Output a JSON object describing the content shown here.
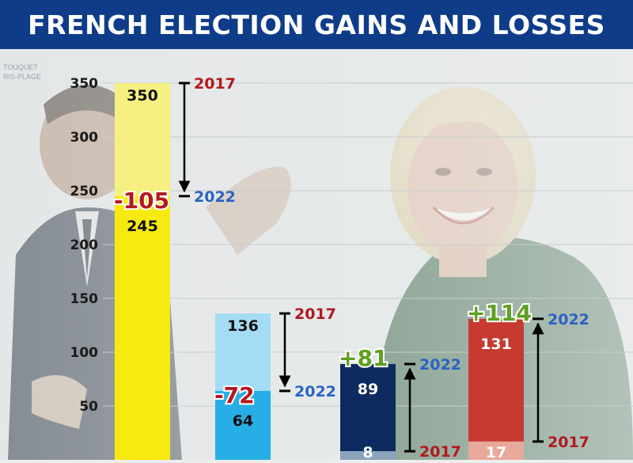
{
  "header": {
    "title": "FRENCH ELECTION GAINS AND LOSSES"
  },
  "watermark": {
    "line1": "TOUQUET",
    "line2": "RIS-PLAGE"
  },
  "colors": {
    "header_bg": "#0e3c89",
    "year_2017": "#b3191e",
    "year_2022": "#2a63c4",
    "gain": "#5ea020",
    "loss": "#b3191e"
  },
  "chart_data": {
    "type": "bar",
    "title": "FRENCH ELECTION GAINS AND LOSSES",
    "xlabel": "",
    "ylabel": "",
    "ylim": [
      0,
      350
    ],
    "yticks": [
      50,
      100,
      150,
      200,
      250,
      300,
      350
    ],
    "grid": true,
    "year_labels": {
      "from": "2017",
      "to": "2022"
    },
    "groups": [
      {
        "value_2017": 350,
        "value_2022": 245,
        "change": "-105",
        "bar_2017": "#f6f082",
        "bar_2022": "#f7ea10"
      },
      {
        "value_2017": 136,
        "value_2022": 64,
        "change": "-72",
        "bar_2017": "#a4dcf4",
        "bar_2022": "#27aee6"
      },
      {
        "value_2017": 8,
        "value_2022": 89,
        "change": "+81",
        "bar_2017": "#8aa3bd",
        "bar_2022": "#0d2b5e"
      },
      {
        "value_2017": 17,
        "value_2022": 131,
        "change": "+114",
        "bar_2017": "#e8a89a",
        "bar_2022": "#c63a30"
      }
    ]
  }
}
